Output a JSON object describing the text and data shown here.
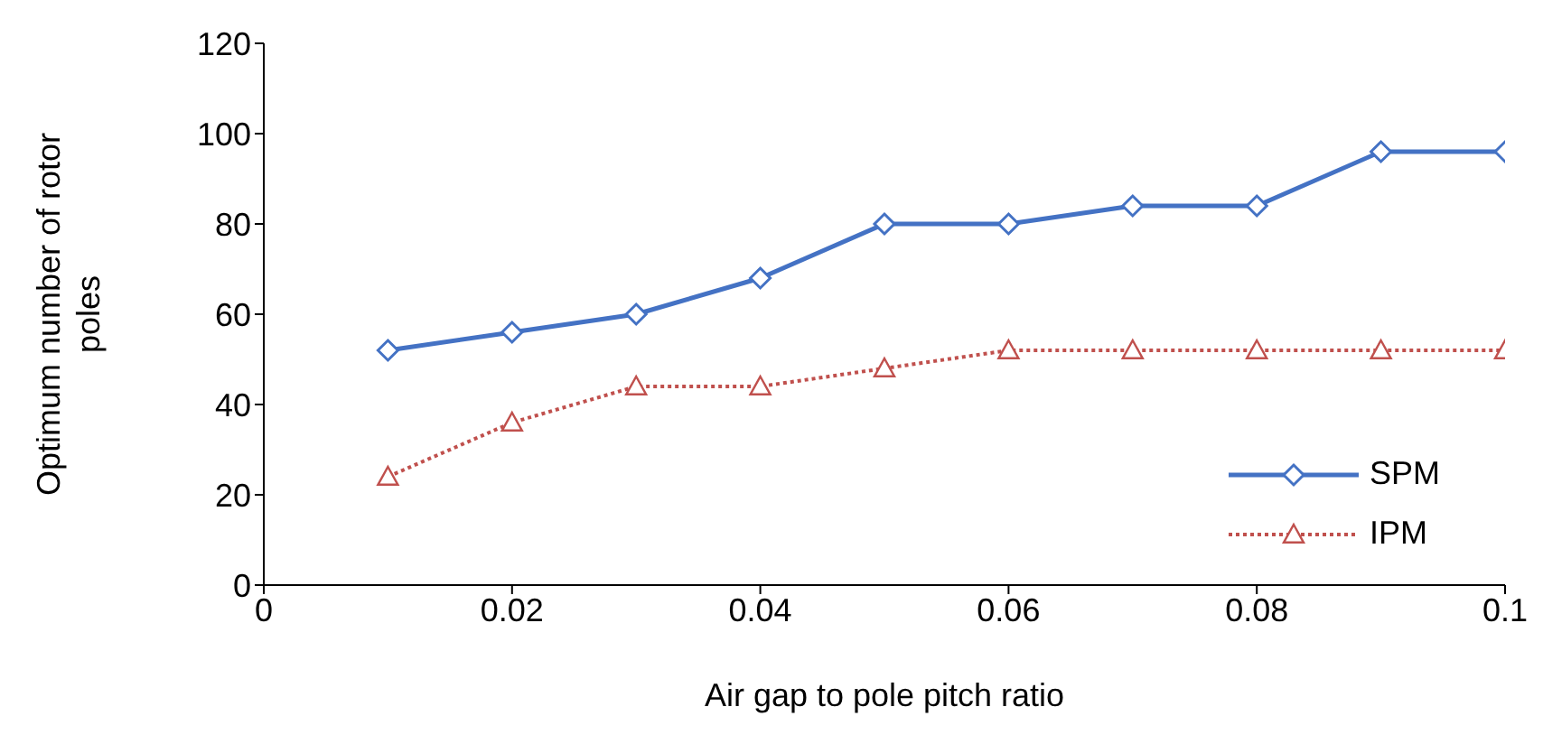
{
  "chart_data": {
    "type": "line",
    "xlabel": "Air gap to pole pitch ratio",
    "ylabel": "Optimum number of rotor poles",
    "x": [
      0.01,
      0.02,
      0.03,
      0.04,
      0.05,
      0.06,
      0.07,
      0.08,
      0.09,
      0.1
    ],
    "series": [
      {
        "name": "SPM",
        "color": "#4472c4",
        "marker": "diamond",
        "line_style": "solid",
        "values": [
          52,
          56,
          60,
          68,
          80,
          80,
          84,
          84,
          96,
          96
        ]
      },
      {
        "name": "IPM",
        "color": "#c0504d",
        "marker": "triangle",
        "line_style": "dotted",
        "values": [
          24,
          36,
          44,
          44,
          48,
          52,
          52,
          52,
          52,
          52
        ]
      }
    ],
    "xlim": [
      0,
      0.1
    ],
    "xticks": [
      0,
      0.02,
      0.04,
      0.06,
      0.08,
      0.1
    ],
    "ylim": [
      0,
      120
    ],
    "yticks": [
      0,
      20,
      40,
      60,
      80,
      100,
      120
    ],
    "grid": false,
    "legend": "bottom right"
  }
}
